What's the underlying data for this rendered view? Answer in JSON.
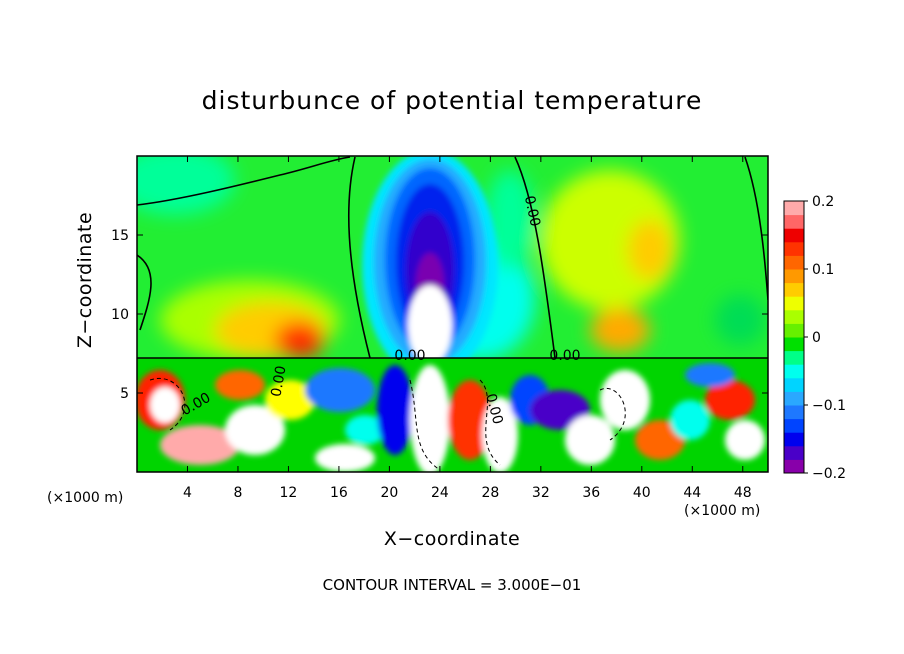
{
  "chart_data": {
    "type": "heatmap",
    "title": "disturbunce of potential temperature",
    "xlabel": "X−coordinate",
    "ylabel": "Z−coordinate",
    "x_unit_left": "(×1000 m)",
    "x_unit_right": "(×1000 m)",
    "footer": "CONTOUR INTERVAL = 3.000E−01",
    "xlim": [
      0,
      50
    ],
    "ylim": [
      0,
      20
    ],
    "x_ticks": [
      4,
      8,
      12,
      16,
      20,
      24,
      28,
      32,
      36,
      40,
      44,
      48
    ],
    "y_ticks": [
      5,
      10,
      15
    ],
    "colorbar": {
      "range": [
        -0.2,
        0.2
      ],
      "ticks": [
        {
          "value": 0.2,
          "label": "0.2"
        },
        {
          "value": 0.1,
          "label": "0.1"
        },
        {
          "value": 0,
          "label": "0"
        },
        {
          "value": -0.1,
          "label": "−0.1"
        },
        {
          "value": -0.2,
          "label": "−0.2"
        }
      ],
      "colors": [
        "#8800aa",
        "#4a00c8",
        "#0000ee",
        "#0044ff",
        "#1e78ff",
        "#2aa8ff",
        "#00d4ff",
        "#00ffee",
        "#00ff88",
        "#00e000",
        "#66f000",
        "#aaff00",
        "#eeff00",
        "#ffcc00",
        "#ff9900",
        "#ff6600",
        "#ff3300",
        "#ee0000",
        "#ff6666",
        "#ffaaaa"
      ]
    },
    "contour_labels": [
      "0.00",
      "0.00",
      "0.00",
      "0.00",
      "0.00",
      "0.00"
    ],
    "grid": false
  }
}
